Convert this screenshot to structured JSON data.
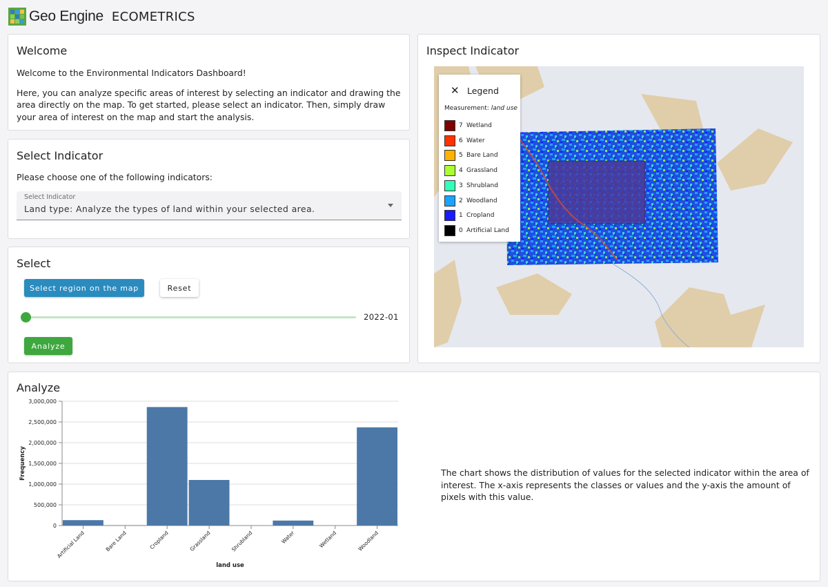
{
  "header": {
    "logo_text": "Geo Engine",
    "app_name": "ECOMETRICS"
  },
  "welcome": {
    "title": "Welcome",
    "line1": "Welcome to the Environmental Indicators Dashboard!",
    "line2": "Here, you can analyze specific areas of interest by selecting an indicator and drawing the area directly on the map. To get started, please select an indicator. Then, simply draw your area of interest on the map and start the analysis."
  },
  "indicator": {
    "title": "Select Indicator",
    "prompt": "Please choose one of the following indicators:",
    "select_label": "Select Indicator",
    "select_value": "Land type: Analyze the types of land within your selected area."
  },
  "select": {
    "title": "Select",
    "region_button": "Select region on the map",
    "reset_button": "Reset",
    "slider_value": "2022-01",
    "slider_fraction": 0,
    "analyze_button": "Analyze"
  },
  "inspect": {
    "title": "Inspect Indicator",
    "legend": {
      "close_icon": "close-icon",
      "title": "Legend",
      "measurement_label": "Measurement:",
      "measurement_value": "land use",
      "items": [
        {
          "code": "7",
          "label": "Wetland",
          "color": "#800000"
        },
        {
          "code": "6",
          "label": "Water",
          "color": "#ff3300"
        },
        {
          "code": "5",
          "label": "Bare Land",
          "color": "#ffb300"
        },
        {
          "code": "4",
          "label": "Grassland",
          "color": "#aaff33"
        },
        {
          "code": "3",
          "label": "Shrubland",
          "color": "#33ffbb"
        },
        {
          "code": "2",
          "label": "Woodland",
          "color": "#1aa3ff"
        },
        {
          "code": "1",
          "label": "Cropland",
          "color": "#1a1aff"
        },
        {
          "code": "0",
          "label": "Artificial Land",
          "color": "#000000"
        }
      ]
    }
  },
  "analyze": {
    "title": "Analyze",
    "description": "The chart shows the distribution of values for the selected indicator within the area of interest. The x-axis represents the classes or values and the y-axis the amount of pixels with this value."
  },
  "chart_data": {
    "type": "bar",
    "categories": [
      "Artificial Land",
      "Bare Land",
      "Cropland",
      "Grassland",
      "Shrubland",
      "Water",
      "Wetland",
      "Woodland"
    ],
    "values": [
      130000,
      8000,
      2860000,
      1100000,
      0,
      120000,
      0,
      2370000
    ],
    "xlabel": "land use",
    "ylabel": "Frequency",
    "ylim": [
      0,
      3000000
    ],
    "yticks": [
      "0",
      "500,000",
      "1,000,000",
      "1,500,000",
      "2,000,000",
      "2,500,000",
      "3,000,000"
    ],
    "bar_color": "#4c78a8",
    "grid": true
  }
}
